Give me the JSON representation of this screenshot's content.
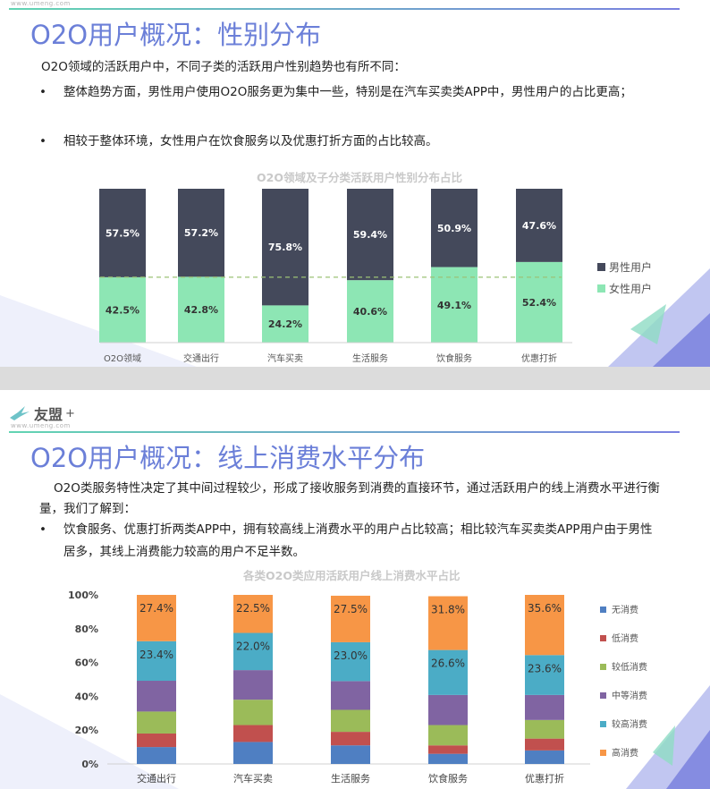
{
  "slide1": {
    "site": "www.umeng.com",
    "title": "O2O用户概况：性别分布",
    "intro": "O2O领域的活跃用户中，不同子类的活跃用户性别趋势也有所不同：",
    "bullets": [
      "整体趋势方面，男性用户使用O2O服务更为集中一些，特别是在汽车买卖类APP中，男性用户的占比更高；",
      "相较于整体环境，女性用户在饮食服务以及优惠打折方面的占比较高。"
    ],
    "chart_title": "O2O领域及子分类活跃用户性别分布占比"
  },
  "slide2": {
    "brand": "友盟",
    "brand_plus": "+",
    "site": "www.umeng.com",
    "title": "O2O用户概况：线上消费水平分布",
    "intro": "O2O类服务特性决定了其中间过程较少，形成了接收服务到消费的直接环节，通过活跃用户的线上消费水平进行衡量，我们了解到：",
    "bullets": [
      "饮食服务、优惠打折两类APP中，拥有较高线上消费水平的用户占比较高；相比较汽车买卖类APP用户由于男性居多，其线上消费能力较高的用户不足半数。"
    ],
    "chart_title": "各类O2O类应用活跃用户线上消费水平占比"
  },
  "chart_data": [
    {
      "type": "bar",
      "stacked": true,
      "title": "O2O领域及子分类活跃用户性别分布占比",
      "categories": [
        "O2O领域",
        "交通出行",
        "汽车买卖",
        "生活服务",
        "饮食服务",
        "优惠打折"
      ],
      "series": [
        {
          "name": "女性用户",
          "color": "#8de6b4",
          "values": [
            42.5,
            42.8,
            24.2,
            40.6,
            49.1,
            52.4
          ],
          "labels": [
            "42.5%",
            "42.8%",
            "24.2%",
            "40.6%",
            "49.1%",
            "52.4%"
          ]
        },
        {
          "name": "男性用户",
          "color": "#44495b",
          "values": [
            57.5,
            57.2,
            75.8,
            59.4,
            50.9,
            47.6
          ],
          "labels": [
            "57.5%",
            "57.2%",
            "75.8%",
            "59.4%",
            "50.9%",
            "47.6%"
          ]
        }
      ],
      "reference_line": {
        "value": 42.5,
        "color": "#9bc276",
        "style": "dashed"
      },
      "ylim": [
        0,
        100
      ],
      "legend": "right"
    },
    {
      "type": "bar",
      "stacked": true,
      "title": "各类O2O类应用活跃用户线上消费水平占比",
      "categories": [
        "交通出行",
        "汽车买卖",
        "生活服务",
        "饮食服务",
        "优惠打折"
      ],
      "yticks": [
        "0%",
        "20%",
        "40%",
        "60%",
        "80%",
        "100%"
      ],
      "ylim": [
        0,
        100
      ],
      "series": [
        {
          "name": "无消费",
          "color": "#4f7fc2",
          "values": [
            10,
            13,
            11,
            6,
            8
          ],
          "labels": [
            "",
            "",
            "",
            "",
            ""
          ]
        },
        {
          "name": "低消费",
          "color": "#c1504e",
          "values": [
            8,
            10,
            8,
            5,
            7
          ],
          "labels": [
            "",
            "",
            "",
            "",
            ""
          ]
        },
        {
          "name": "较低消费",
          "color": "#9bbb59",
          "values": [
            13,
            15,
            13,
            12,
            11
          ],
          "labels": [
            "",
            "",
            "",
            "",
            ""
          ]
        },
        {
          "name": "中等消费",
          "color": "#8064a2",
          "values": [
            18.2,
            17.5,
            17,
            17.8,
            14.8
          ],
          "labels": [
            "",
            "",
            "",
            "",
            ""
          ]
        },
        {
          "name": "较高消费",
          "color": "#4bacc6",
          "values": [
            23.4,
            22.0,
            23.0,
            26.6,
            23.6
          ],
          "labels": [
            "23.4%",
            "22.0%",
            "23.0%",
            "26.6%",
            "23.6%"
          ]
        },
        {
          "name": "高消费",
          "color": "#f79646",
          "values": [
            27.4,
            22.5,
            27.5,
            31.8,
            35.6
          ],
          "labels": [
            "27.4%",
            "22.5%",
            "27.5%",
            "31.8%",
            "35.6%"
          ]
        }
      ],
      "legend": "right"
    }
  ]
}
